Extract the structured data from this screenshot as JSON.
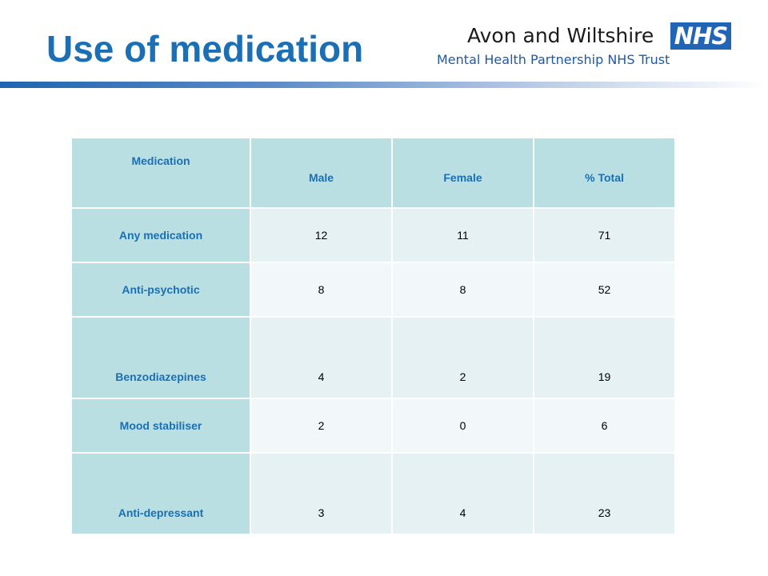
{
  "slide": {
    "title": "Use of medication"
  },
  "logo": {
    "org_name": "Avon and Wiltshire",
    "badge": "NHS",
    "subtitle": "Mental Health Partnership NHS Trust"
  },
  "table": {
    "headers": [
      "Medication",
      "Male",
      "Female",
      "% Total"
    ],
    "rows": [
      {
        "medication": "Any medication",
        "male": "12",
        "female": "11",
        "total": "71"
      },
      {
        "medication": "Anti-psychotic",
        "male": "8",
        "female": "8",
        "total": "52"
      },
      {
        "medication": "Benzodiazepines",
        "male": "4",
        "female": "2",
        "total": "19"
      },
      {
        "medication": "Mood stabiliser",
        "male": "2",
        "female": "0",
        "total": "6"
      },
      {
        "medication": "Anti-depressant",
        "male": "3",
        "female": "4",
        "total": "23"
      }
    ]
  },
  "colors": {
    "title": "#1a6fb5",
    "header_fill": "#b9dfe3",
    "row_fill_a": "#e6f1f3",
    "row_fill_b": "#f2f7f9",
    "nhs_blue": "#2166b6"
  }
}
